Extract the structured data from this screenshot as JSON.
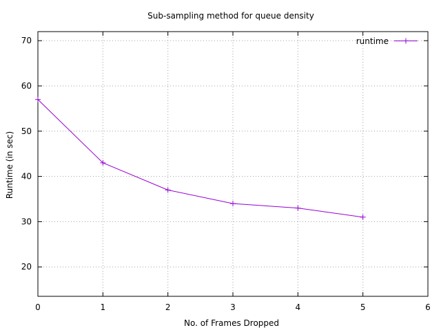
{
  "chart_data": {
    "type": "line",
    "title": "Sub-sampling method for queue density",
    "xlabel": "No. of Frames Dropped",
    "ylabel": "Runtime (in sec)",
    "xlim": [
      0,
      6
    ],
    "ylim": [
      13.5,
      72
    ],
    "x_ticks": [
      "0",
      "1",
      "2",
      "3",
      "4",
      "5",
      "6"
    ],
    "y_ticks": [
      "20",
      "30",
      "40",
      "50",
      "60",
      "70"
    ],
    "grid": true,
    "legend_position": "top-right",
    "series": [
      {
        "name": "runtime",
        "color": "#9400d3",
        "marker": "plus",
        "x": [
          0,
          1,
          2,
          3,
          4,
          5
        ],
        "y": [
          57,
          43,
          37,
          34,
          33,
          31
        ]
      }
    ]
  }
}
